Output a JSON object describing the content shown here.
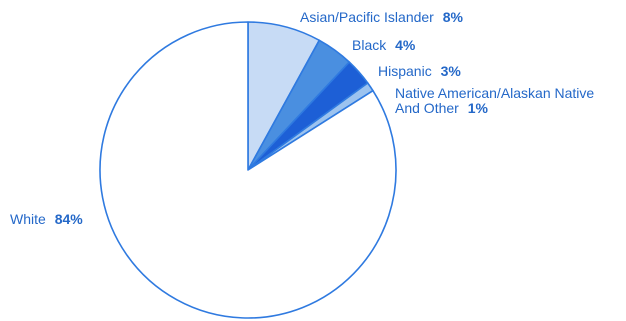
{
  "chart_data": {
    "type": "pie",
    "title": "",
    "start": "top",
    "direction": "clockwise",
    "slices": [
      {
        "label": "Asian/Pacific Islander",
        "value": 8,
        "value_label": "8%",
        "color": "#c7dbf5"
      },
      {
        "label": "Black",
        "value": 4,
        "value_label": "4%",
        "color": "#4a8fe0"
      },
      {
        "label": "Hispanic",
        "value": 3,
        "value_label": "3%",
        "color": "#1d5fd6"
      },
      {
        "label": "Native American/Alaskan Native",
        "label_line2": "And Other",
        "value": 1,
        "value_label": "1%",
        "color": "#9cc3ef"
      },
      {
        "label": "White",
        "value": 84,
        "value_label": "84%",
        "color": "#ffffff"
      }
    ],
    "outline_color": "#2f7ae0",
    "label_color": "#2468c8"
  }
}
